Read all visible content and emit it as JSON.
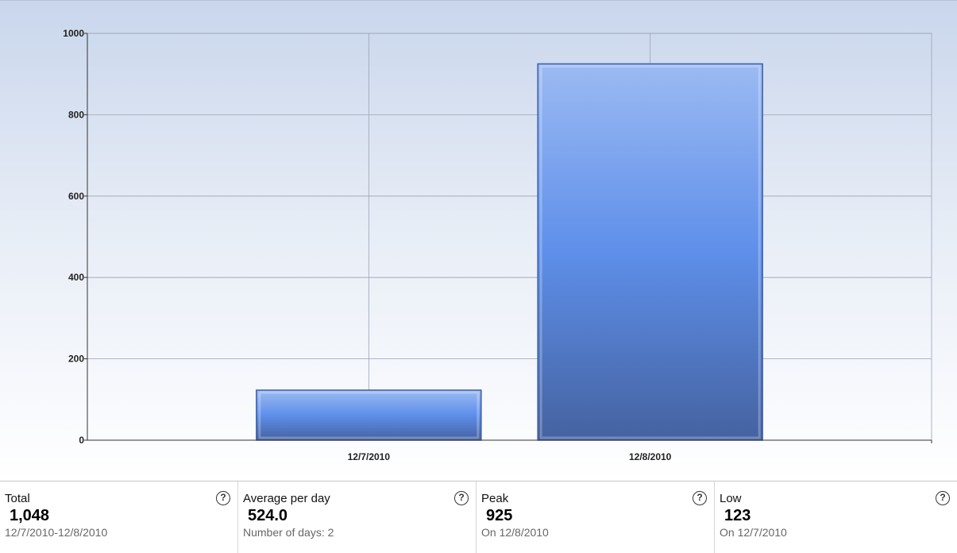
{
  "chart_data": {
    "type": "bar",
    "categories": [
      "12/7/2010",
      "12/8/2010"
    ],
    "values": [
      123,
      925
    ],
    "ylim": [
      0,
      1000
    ],
    "yticks": [
      0,
      200,
      400,
      600,
      800,
      1000
    ],
    "grid": true,
    "xlabel": "",
    "ylabel": "",
    "title": ""
  },
  "colors": {
    "bar_top": "#9cbaf2",
    "bar_mid": "#5e8fea",
    "bar_bottom": "#4562a0",
    "bar_border": "#3f5fa8",
    "grid": "#9aa3b5"
  },
  "stats": [
    {
      "label": "Total",
      "value": "1,048",
      "sub": "12/7/2010-12/8/2010",
      "icon": "help-icon"
    },
    {
      "label": "Average per day",
      "value": "524.0",
      "sub": "Number of days: 2",
      "icon": "help-icon"
    },
    {
      "label": "Peak",
      "value": "925",
      "sub": "On 12/8/2010",
      "icon": "help-icon"
    },
    {
      "label": "Low",
      "value": "123",
      "sub": "On 12/7/2010",
      "icon": "help-icon"
    }
  ],
  "help_glyph": "?"
}
